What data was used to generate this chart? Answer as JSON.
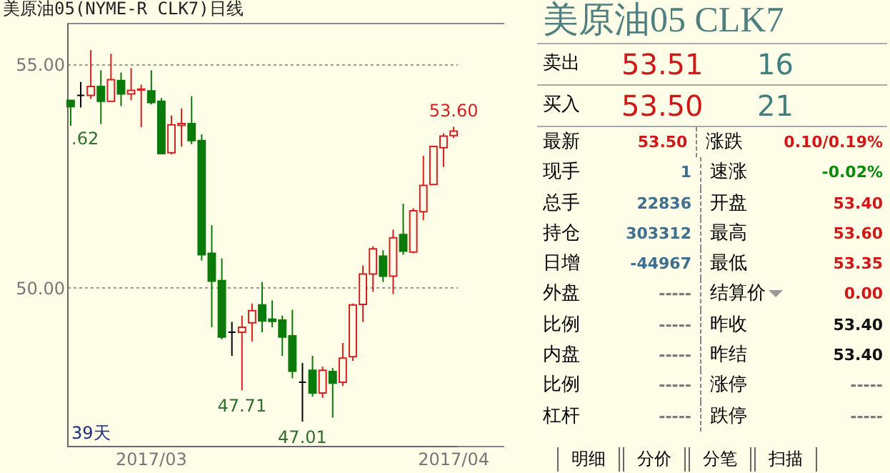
{
  "chart_data": [
    {
      "type": "candlestick",
      "title": "美原油05(NYME-R CLK7)日线",
      "categories": [
        null,
        null,
        null,
        null,
        null,
        null,
        null,
        null,
        "2017/03",
        null,
        null,
        null,
        null,
        null,
        null,
        null,
        null,
        null,
        null,
        null,
        null,
        null,
        null,
        null,
        null,
        null,
        null,
        null,
        null,
        null,
        null,
        null,
        null,
        null,
        null,
        null,
        null,
        null,
        "2017/04"
      ],
      "ohlc": [
        [
          54.19,
          54.2,
          53.62,
          54.05
        ],
        [
          54.3,
          54.6,
          54.03,
          54.3
        ],
        [
          54.3,
          55.31,
          54.22,
          54.5
        ],
        [
          54.5,
          54.86,
          53.66,
          54.17
        ],
        [
          54.17,
          55.23,
          54.17,
          54.65
        ],
        [
          54.63,
          54.81,
          54.06,
          54.33
        ],
        [
          54.33,
          54.91,
          54.19,
          54.41
        ],
        [
          54.42,
          54.54,
          53.59,
          54.44
        ],
        [
          54.4,
          54.86,
          54.1,
          54.14
        ],
        [
          54.17,
          54.24,
          53.0,
          53.0
        ],
        [
          53.02,
          53.85,
          52.98,
          53.64
        ],
        [
          53.63,
          54.01,
          53.16,
          53.67
        ],
        [
          53.67,
          54.28,
          53.21,
          53.29
        ],
        [
          53.29,
          53.43,
          50.61,
          50.74
        ],
        [
          50.77,
          51.4,
          49.12,
          50.15
        ],
        [
          50.16,
          50.66,
          48.85,
          48.9
        ],
        [
          49.01,
          49.24,
          48.48,
          49.01
        ],
        [
          49.01,
          49.38,
          47.71,
          49.12
        ],
        [
          49.22,
          49.65,
          48.8,
          49.49
        ],
        [
          49.62,
          50.13,
          49.01,
          49.26
        ],
        [
          49.3,
          49.72,
          49.12,
          49.25
        ],
        [
          49.28,
          49.38,
          48.48,
          48.9
        ],
        [
          48.93,
          49.51,
          47.98,
          48.14
        ],
        [
          47.89,
          48.32,
          47.01,
          47.89
        ],
        [
          48.16,
          48.48,
          47.57,
          47.65
        ],
        [
          47.65,
          48.24,
          47.54,
          48.16
        ],
        [
          48.13,
          48.21,
          47.1,
          47.87
        ],
        [
          47.89,
          48.77,
          47.81,
          48.43
        ],
        [
          48.46,
          49.65,
          48.37,
          49.62
        ],
        [
          49.63,
          50.5,
          49.24,
          50.31
        ],
        [
          50.31,
          50.93,
          49.91,
          50.87
        ],
        [
          50.71,
          50.84,
          50.13,
          50.26
        ],
        [
          50.26,
          51.3,
          49.86,
          51.12
        ],
        [
          51.19,
          51.88,
          50.74,
          50.82
        ],
        [
          50.8,
          51.78,
          50.77,
          51.72
        ],
        [
          51.7,
          52.95,
          51.51,
          52.29
        ],
        [
          52.31,
          53.16,
          52.31,
          53.16
        ],
        [
          53.13,
          53.45,
          52.7,
          53.39
        ],
        [
          53.4,
          53.6,
          53.35,
          53.5
        ]
      ],
      "ylim": [
        46.47,
        55.92
      ],
      "yticks": [
        {
          "value": 55,
          "label": "55.00"
        },
        {
          "value": 50,
          "label": "50.00"
        }
      ],
      "grid": "y",
      "annotations": [
        ".62",
        {
          "text": "47.71",
          "y": 47.71
        },
        {
          "text": "47.01",
          "y": 47.01
        },
        {
          "text": "53.60",
          "y": 53.6
        },
        "39天"
      ]
    },
    {
      "type": "other",
      "title": "美原油05  CLK7",
      "annotations": [
        "卖出",
        "53.51",
        "16",
        "买入",
        "53.50",
        "21",
        "最新",
        "53.50",
        "涨跌",
        "0.10/0.19%",
        "现手",
        "1",
        "速涨",
        "-0.02%",
        "总手",
        "22836",
        "开盘",
        "53.40",
        "持仓",
        "303312",
        "最高",
        "53.60",
        "日增",
        "-44967",
        "最低",
        "53.35",
        "外盘",
        "-----",
        "结算价",
        "0.00",
        "比例",
        "-----",
        "昨收",
        "53.40",
        "内盘",
        "-----",
        "昨结",
        "53.40",
        "比例",
        "-----",
        "涨停",
        "-----",
        "杠杆",
        "-----",
        "跌停",
        "-----",
        "明细",
        "分价",
        "分笔",
        "扫描"
      ]
    }
  ]
}
